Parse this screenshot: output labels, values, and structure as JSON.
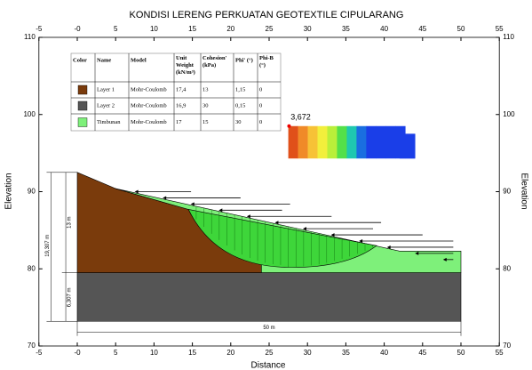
{
  "title": "KONDISI LERENG PERKUATAN GEOTEXTILE CIPULARANG",
  "x_axis_label": "Distance",
  "y_axis_label": "Elevation",
  "x_ticks": [
    {
      "value": -5,
      "label": "-5"
    },
    {
      "value": 0,
      "label": "-0"
    },
    {
      "value": 5,
      "label": "5"
    },
    {
      "value": 10,
      "label": "10"
    },
    {
      "value": 15,
      "label": "15"
    },
    {
      "value": 20,
      "label": "20"
    },
    {
      "value": 25,
      "label": "25"
    },
    {
      "value": 30,
      "label": "30"
    },
    {
      "value": 35,
      "label": "35"
    },
    {
      "value": 40,
      "label": "40"
    },
    {
      "value": 45,
      "label": "45"
    },
    {
      "value": 50,
      "label": "50"
    },
    {
      "value": 55,
      "label": "55"
    }
  ],
  "y_ticks": [
    70,
    80,
    90,
    100,
    110
  ],
  "safety_factor": "3,672",
  "dimensions": {
    "total_height": "19,307 m",
    "upper_height": "13 m",
    "lower_height": "6,307 m",
    "width": "50 m"
  },
  "table": {
    "header": [
      "Color",
      "Name",
      "Model",
      "Unit Weight (kN/m³)",
      "Cohesion' (kPa)",
      "Phi' (°)",
      "Phi-B (°)"
    ],
    "rows": [
      {
        "color": "#7a3b0c",
        "cells": [
          "Layer 1",
          "Mohr-Coulomb",
          "17,4",
          "13",
          "1,15",
          "0"
        ]
      },
      {
        "color": "#555555",
        "cells": [
          "Layer 2",
          "Mohr-Coulomb",
          "16,9",
          "30",
          "0,15",
          "0"
        ]
      },
      {
        "color": "#7ef07a",
        "cells": [
          "Timbunan",
          "Mohr-Coulomb",
          "17",
          "15",
          "30",
          "0"
        ]
      }
    ]
  }
}
